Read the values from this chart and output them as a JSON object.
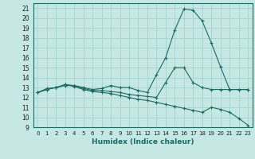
{
  "xlabel": "Humidex (Indice chaleur)",
  "bg_color": "#c5e8e4",
  "grid_color": "#9ecfca",
  "line_color": "#1a6b63",
  "xlim": [
    -0.5,
    23.5
  ],
  "ylim": [
    9,
    21.5
  ],
  "yticks": [
    9,
    10,
    11,
    12,
    13,
    14,
    15,
    16,
    17,
    18,
    19,
    20,
    21
  ],
  "xticks": [
    0,
    1,
    2,
    3,
    4,
    5,
    6,
    7,
    8,
    9,
    10,
    11,
    12,
    13,
    14,
    15,
    16,
    17,
    18,
    19,
    20,
    21,
    22,
    23
  ],
  "line1_x": [
    0,
    1,
    2,
    3,
    4,
    5,
    6,
    7,
    8,
    9,
    10,
    11,
    12,
    13,
    14,
    15,
    16,
    17,
    18,
    19,
    20,
    21,
    22,
    23
  ],
  "line1_y": [
    12.5,
    12.9,
    13.0,
    13.2,
    13.2,
    13.0,
    12.8,
    12.9,
    13.2,
    13.0,
    13.0,
    12.7,
    12.5,
    14.3,
    16.0,
    18.8,
    20.9,
    20.8,
    19.7,
    17.5,
    15.1,
    12.8,
    12.8,
    12.8
  ],
  "line2_x": [
    0,
    1,
    2,
    3,
    4,
    5,
    6,
    7,
    8,
    9,
    10,
    11,
    12,
    13,
    14,
    15,
    16,
    17,
    18,
    19,
    20,
    21,
    22,
    23
  ],
  "line2_y": [
    12.5,
    12.8,
    13.0,
    13.3,
    13.2,
    12.9,
    12.7,
    12.7,
    12.6,
    12.5,
    12.3,
    12.2,
    12.1,
    12.0,
    13.5,
    15.0,
    15.0,
    13.5,
    13.0,
    12.8,
    12.8,
    12.8,
    12.8,
    12.8
  ],
  "line3_x": [
    0,
    1,
    2,
    3,
    4,
    5,
    6,
    7,
    8,
    9,
    10,
    11,
    12,
    13,
    14,
    15,
    16,
    17,
    18,
    19,
    20,
    21,
    22,
    23
  ],
  "line3_y": [
    12.5,
    12.8,
    13.0,
    13.3,
    13.1,
    12.8,
    12.6,
    12.5,
    12.4,
    12.2,
    12.0,
    11.8,
    11.7,
    11.5,
    11.3,
    11.1,
    10.9,
    10.7,
    10.5,
    11.0,
    10.8,
    10.5,
    9.9,
    9.2
  ]
}
